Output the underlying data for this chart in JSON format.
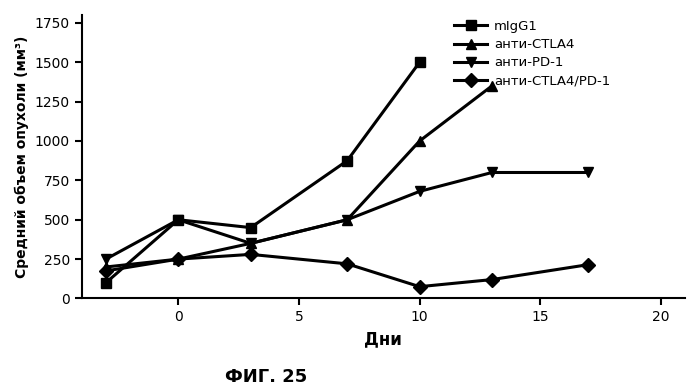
{
  "series": [
    {
      "label": "mIgG1",
      "x": [
        -3,
        0,
        3,
        7,
        10
      ],
      "y": [
        100,
        500,
        450,
        875,
        1500
      ],
      "marker": "s",
      "color": "#000000"
    },
    {
      "label": "анти-CTLA4",
      "x": [
        -3,
        0,
        3,
        7,
        10,
        13
      ],
      "y": [
        200,
        250,
        350,
        500,
        1000,
        1350
      ],
      "marker": "^",
      "color": "#000000"
    },
    {
      "label": "анти-PD-1",
      "x": [
        -3,
        0,
        3,
        7,
        10,
        13,
        17
      ],
      "y": [
        250,
        500,
        350,
        500,
        680,
        800,
        800
      ],
      "marker": "v",
      "color": "#000000"
    },
    {
      "label": "анти-CTLA4/PD-1",
      "x": [
        -3,
        0,
        3,
        7,
        10,
        13,
        17
      ],
      "y": [
        175,
        250,
        280,
        220,
        75,
        120,
        215
      ],
      "marker": "D",
      "color": "#000000"
    }
  ],
  "xlabel": "Дни",
  "ylabel": "Средний объем опухоли (мм³)",
  "caption": "ФИГ. 25",
  "xlim": [
    -4,
    21
  ],
  "ylim": [
    0,
    1800
  ],
  "yticks": [
    0,
    250,
    500,
    750,
    1000,
    1250,
    1500,
    1750
  ],
  "xticks": [
    0,
    5,
    10,
    15,
    20
  ],
  "background_color": "#ffffff",
  "linewidth": 2.2,
  "markersize": 7
}
